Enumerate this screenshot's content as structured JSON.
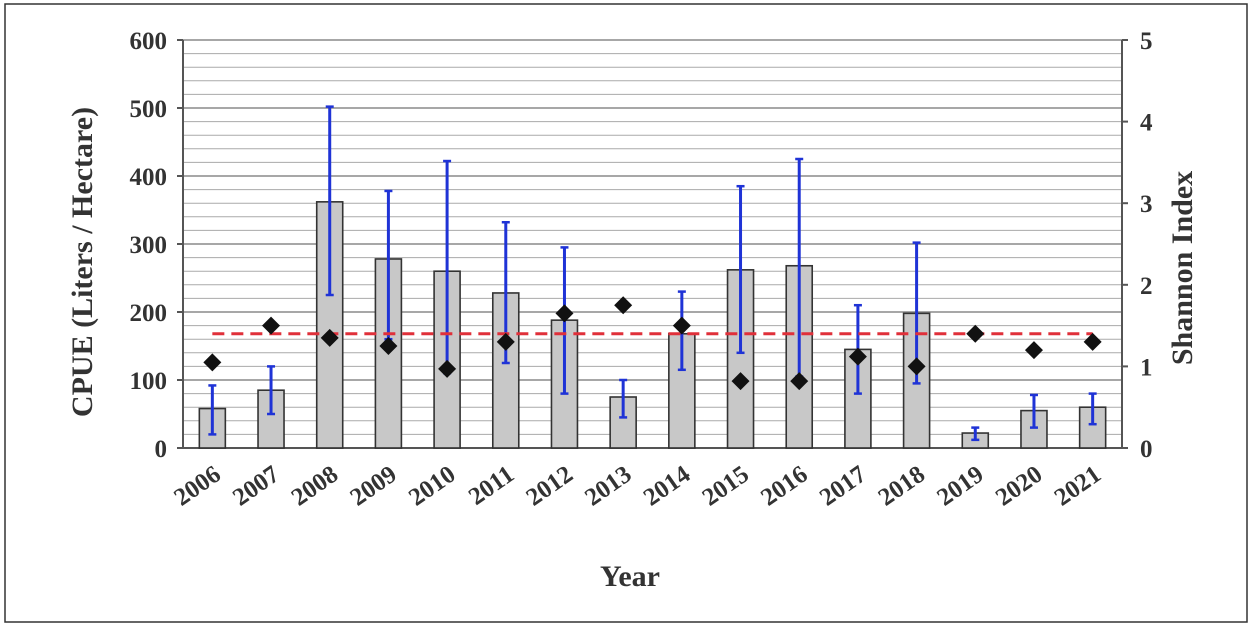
{
  "chart_data": {
    "type": "bar",
    "categories": [
      "2006",
      "2007",
      "2008",
      "2009",
      "2010",
      "2011",
      "2012",
      "2013",
      "2014",
      "2015",
      "2016",
      "2017",
      "2018",
      "2019",
      "2020",
      "2021"
    ],
    "series": [
      {
        "kind": "bar",
        "axis": "left",
        "values": [
          58,
          85,
          362,
          278,
          260,
          228,
          188,
          75,
          168,
          262,
          268,
          145,
          198,
          22,
          55,
          60
        ],
        "error_low": [
          20,
          50,
          225,
          160,
          110,
          125,
          80,
          45,
          115,
          140,
          105,
          80,
          95,
          12,
          30,
          35
        ],
        "error_high": [
          92,
          120,
          502,
          378,
          422,
          332,
          295,
          100,
          230,
          385,
          425,
          210,
          302,
          30,
          78,
          80
        ]
      },
      {
        "kind": "point",
        "axis": "right",
        "values": [
          1.05,
          1.5,
          1.35,
          1.25,
          0.97,
          1.3,
          1.65,
          1.75,
          1.5,
          0.82,
          0.82,
          1.12,
          1.0,
          1.4,
          1.2,
          1.3
        ]
      }
    ],
    "reference_line": {
      "axis": "right",
      "value": 1.4
    },
    "xlabel": "Year",
    "ylabel": "CPUE (Liters / Hectare)",
    "y2label": "Shannon Index",
    "ylim": [
      0,
      600
    ],
    "y2lim": [
      0,
      5
    ],
    "yticks": [
      "0",
      "100",
      "200",
      "300",
      "400",
      "500",
      "600"
    ],
    "y2ticks": [
      "0",
      "1",
      "2",
      "3",
      "4",
      "5"
    ],
    "grid": true,
    "colors": {
      "bar_fill": "#c8c8c8",
      "bar_stroke": "#333333",
      "error_bar": "#1f33d6",
      "point": "#111111",
      "reference_line": "#e0303a",
      "grid": "#aaaaaa",
      "axis": "#555555"
    }
  }
}
